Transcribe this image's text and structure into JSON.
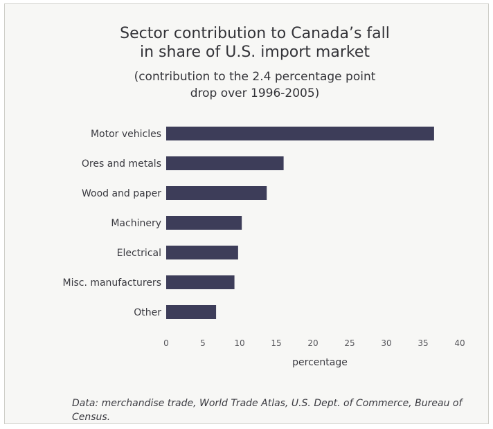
{
  "chart_data": {
    "type": "bar",
    "orientation": "horizontal",
    "title": "Sector contribution to Canada’s fall\nin share of U.S. import market",
    "subtitle": "(contribution to the 2.4 percentage point\ndrop over 1996-2005)",
    "categories": [
      "Motor vehicles",
      "Ores and metals",
      "Wood and paper",
      "Machinery",
      "Electrical",
      "Misc. manufacturers",
      "Other"
    ],
    "values": [
      36.5,
      16,
      13.7,
      10.3,
      9.8,
      9.3,
      6.8
    ],
    "xlabel": "percentage",
    "ylabel": "",
    "xlim": [
      0,
      40
    ],
    "xticks": [
      0,
      5,
      10,
      15,
      20,
      25,
      30,
      35,
      40
    ],
    "grid": false,
    "legend": "none",
    "bar_color": "#3d3d59"
  },
  "source_note": "Data: merchandise trade, World Trade Atlas, U.S. Dept. of Commerce, Bureau of Census."
}
